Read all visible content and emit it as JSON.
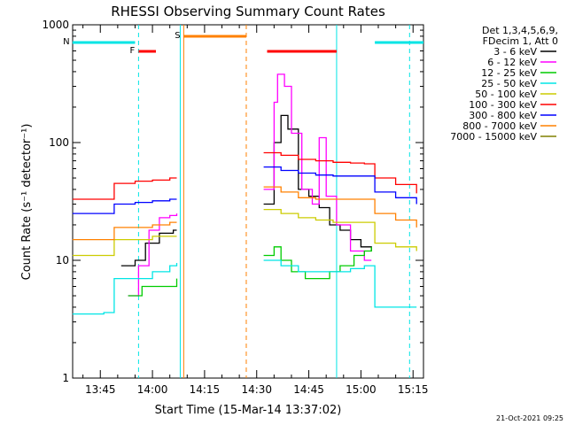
{
  "chart_data": {
    "type": "line",
    "title": "RHESSI Observing Summary Count Rates",
    "xlabel": "Start Time (15-Mar-14 13:37:02)",
    "ylabel": "Count Rate (s⁻¹ detector⁻¹)",
    "x_ticks": [
      "13:45",
      "14:00",
      "14:15",
      "14:30",
      "14:45",
      "15:00",
      "15:15"
    ],
    "y_ticks": [
      "1",
      "10",
      "100",
      "1000"
    ],
    "y_scale": "log",
    "ylim": [
      1,
      1000
    ],
    "xlim": [
      "13:37:02",
      "15:18:00"
    ],
    "grid": false,
    "legend_position": "right",
    "legend_header": [
      "Det 1,3,4,5,6,9,",
      "FDecim 1, Att 0"
    ],
    "series": [
      {
        "name": "3 - 6 keV",
        "color": "#000000",
        "points": [
          [
            "13:51",
            9
          ],
          [
            "13:55",
            10
          ],
          [
            "13:58",
            14
          ],
          [
            "14:02",
            17
          ],
          [
            "14:06",
            18
          ],
          [
            "14:07",
            18
          ],
          [
            "14:32",
            30
          ],
          [
            "14:35",
            100
          ],
          [
            "14:37",
            170
          ],
          [
            "14:39",
            130
          ],
          [
            "14:42",
            40
          ],
          [
            "14:45",
            35
          ],
          [
            "14:48",
            28
          ],
          [
            "14:51",
            20
          ],
          [
            "14:54",
            18
          ],
          [
            "14:57",
            15
          ],
          [
            "15:00",
            13
          ],
          [
            "15:03",
            12
          ]
        ]
      },
      {
        "name": "6 - 12 keV",
        "color": "#ff00ff",
        "points": [
          [
            "13:53",
            5
          ],
          [
            "13:56",
            9
          ],
          [
            "13:59",
            18
          ],
          [
            "14:02",
            23
          ],
          [
            "14:05",
            24
          ],
          [
            "14:07",
            25
          ],
          [
            "14:32",
            40
          ],
          [
            "14:35",
            220
          ],
          [
            "14:36",
            380
          ],
          [
            "14:38",
            300
          ],
          [
            "14:40",
            120
          ],
          [
            "14:43",
            40
          ],
          [
            "14:46",
            30
          ],
          [
            "14:48",
            110
          ],
          [
            "14:50",
            35
          ],
          [
            "14:53",
            20
          ],
          [
            "14:57",
            12
          ],
          [
            "15:01",
            10
          ],
          [
            "15:03",
            10
          ]
        ]
      },
      {
        "name": "12 - 25 keV",
        "color": "#00cc00",
        "points": [
          [
            "13:53",
            5
          ],
          [
            "13:57",
            6
          ],
          [
            "14:00",
            6
          ],
          [
            "14:04",
            6
          ],
          [
            "14:07",
            7
          ],
          [
            "14:32",
            11
          ],
          [
            "14:35",
            13
          ],
          [
            "14:37",
            10
          ],
          [
            "14:40",
            8
          ],
          [
            "14:44",
            7
          ],
          [
            "14:48",
            7
          ],
          [
            "14:51",
            8
          ],
          [
            "14:54",
            9
          ],
          [
            "14:58",
            11
          ],
          [
            "15:01",
            12
          ],
          [
            "15:03",
            13
          ]
        ]
      },
      {
        "name": "25 - 50 keV",
        "color": "#00e5e5",
        "points": [
          [
            "13:37",
            3.5
          ],
          [
            "13:42",
            3.5
          ],
          [
            "13:46",
            3.6
          ],
          [
            "13:48",
            3.6
          ],
          [
            "13:49",
            7
          ],
          [
            "13:55",
            7
          ],
          [
            "14:00",
            8
          ],
          [
            "14:05",
            9
          ],
          [
            "14:07",
            9.5
          ],
          [
            "14:32",
            10
          ],
          [
            "14:37",
            9
          ],
          [
            "14:42",
            8
          ],
          [
            "14:47",
            8
          ],
          [
            "14:52",
            8
          ],
          [
            "14:57",
            8.5
          ],
          [
            "15:01",
            9
          ],
          [
            "15:03",
            9
          ],
          [
            "15:04",
            4
          ],
          [
            "15:10",
            4
          ],
          [
            "15:16",
            4
          ]
        ]
      },
      {
        "name": "50 - 100 keV",
        "color": "#cccc00",
        "points": [
          [
            "13:37",
            11
          ],
          [
            "13:43",
            11
          ],
          [
            "13:48",
            11
          ],
          [
            "13:49",
            15
          ],
          [
            "13:55",
            15
          ],
          [
            "14:00",
            16
          ],
          [
            "14:05",
            16
          ],
          [
            "14:07",
            16
          ],
          [
            "14:32",
            27
          ],
          [
            "14:37",
            25
          ],
          [
            "14:42",
            23
          ],
          [
            "14:47",
            22
          ],
          [
            "14:52",
            21
          ],
          [
            "14:57",
            21
          ],
          [
            "15:01",
            21
          ],
          [
            "15:03",
            21
          ],
          [
            "15:04",
            14
          ],
          [
            "15:10",
            13
          ],
          [
            "15:16",
            12
          ]
        ]
      },
      {
        "name": "100 - 300 keV",
        "color": "#ff0000",
        "points": [
          [
            "13:37",
            33
          ],
          [
            "13:43",
            33
          ],
          [
            "13:48",
            33
          ],
          [
            "13:49",
            45
          ],
          [
            "13:55",
            47
          ],
          [
            "14:00",
            48
          ],
          [
            "14:05",
            50
          ],
          [
            "14:07",
            50
          ],
          [
            "14:32",
            82
          ],
          [
            "14:37",
            78
          ],
          [
            "14:42",
            72
          ],
          [
            "14:47",
            70
          ],
          [
            "14:52",
            68
          ],
          [
            "14:57",
            67
          ],
          [
            "15:01",
            66
          ],
          [
            "15:03",
            66
          ],
          [
            "15:04",
            50
          ],
          [
            "15:10",
            44
          ],
          [
            "15:16",
            37
          ]
        ]
      },
      {
        "name": "300 - 800 keV",
        "color": "#0000ff",
        "points": [
          [
            "13:37",
            25
          ],
          [
            "13:43",
            25
          ],
          [
            "13:48",
            25
          ],
          [
            "13:49",
            30
          ],
          [
            "13:55",
            31
          ],
          [
            "14:00",
            32
          ],
          [
            "14:05",
            33
          ],
          [
            "14:07",
            33
          ],
          [
            "14:32",
            62
          ],
          [
            "14:37",
            58
          ],
          [
            "14:42",
            55
          ],
          [
            "14:47",
            53
          ],
          [
            "14:52",
            52
          ],
          [
            "14:57",
            52
          ],
          [
            "15:01",
            52
          ],
          [
            "15:03",
            52
          ],
          [
            "15:04",
            38
          ],
          [
            "15:10",
            34
          ],
          [
            "15:16",
            30
          ]
        ]
      },
      {
        "name": "800 - 7000 keV",
        "color": "#ff8000",
        "points": [
          [
            "13:37",
            15
          ],
          [
            "13:43",
            15
          ],
          [
            "13:48",
            15
          ],
          [
            "13:49",
            19
          ],
          [
            "13:55",
            19
          ],
          [
            "14:00",
            20
          ],
          [
            "14:05",
            21
          ],
          [
            "14:07",
            21
          ],
          [
            "14:32",
            42
          ],
          [
            "14:37",
            38
          ],
          [
            "14:42",
            34
          ],
          [
            "14:47",
            33
          ],
          [
            "14:52",
            33
          ],
          [
            "14:57",
            33
          ],
          [
            "15:01",
            33
          ],
          [
            "15:03",
            33
          ],
          [
            "15:04",
            25
          ],
          [
            "15:10",
            22
          ],
          [
            "15:16",
            19
          ]
        ]
      },
      {
        "name": "7000 - 15000 keV",
        "color": "#808000",
        "points": []
      }
    ],
    "flag_bars": [
      {
        "label": "N",
        "color": "#00e5e5",
        "segments": [
          [
            "13:37",
            "13:55"
          ],
          [
            "15:04",
            "15:18"
          ]
        ]
      },
      {
        "label": "F",
        "color": "#ff0000",
        "segments": [
          [
            "13:56",
            "14:01"
          ],
          [
            "14:33",
            "14:53"
          ]
        ]
      },
      {
        "label": "S",
        "color": "#ff8000",
        "segments": [
          [
            "14:09",
            "14:27"
          ]
        ]
      }
    ],
    "vlines": [
      {
        "time": "13:56",
        "color": "#00e5e5",
        "dash": true
      },
      {
        "time": "14:08",
        "color": "#00e5e5",
        "dash": false
      },
      {
        "time": "14:09",
        "color": "#ff8000",
        "dash": false
      },
      {
        "time": "14:27",
        "color": "#ff8000",
        "dash": true
      },
      {
        "time": "14:53",
        "color": "#00e5e5",
        "dash": false
      },
      {
        "time": "15:14",
        "color": "#00e5e5",
        "dash": true
      }
    ]
  },
  "footer": {
    "date_stamp": "21-Oct-2021 09:25"
  }
}
